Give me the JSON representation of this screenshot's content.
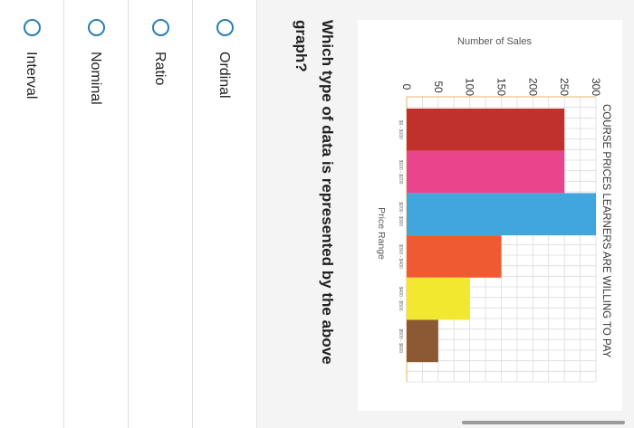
{
  "question": {
    "text": "Which type of data is represented by the above graph?"
  },
  "options": [
    {
      "label": "Ordinal",
      "selected": false
    },
    {
      "label": "Ratio",
      "selected": false
    },
    {
      "label": "Nominal",
      "selected": false
    },
    {
      "label": "Interval",
      "selected": false
    }
  ],
  "colors": {
    "radio": "#2a7fb0",
    "question_bg": "#f4f4f4"
  },
  "chart_data": {
    "type": "bar",
    "orientation": "rotated 90° clockwise in screenshot",
    "title": "COURSE PRICES LEARNERS ARE WILLING TO PAY",
    "xlabel": "Price Range",
    "ylabel": "Number of Sales",
    "categories": [
      "$0 - $100",
      "$100 - $200",
      "$200 - $300",
      "$300 - $400",
      "$400 - $500",
      "$500 - $600"
    ],
    "values": [
      250,
      250,
      300,
      150,
      100,
      50
    ],
    "bar_colors": [
      "#c0302c",
      "#e8458c",
      "#42a6de",
      "#ef5a33",
      "#f2e830",
      "#8b5a35"
    ],
    "ylim": [
      0,
      300
    ],
    "yticks": [
      "0",
      "50",
      "100",
      "150",
      "200",
      "250",
      "300"
    ],
    "grid": true
  }
}
